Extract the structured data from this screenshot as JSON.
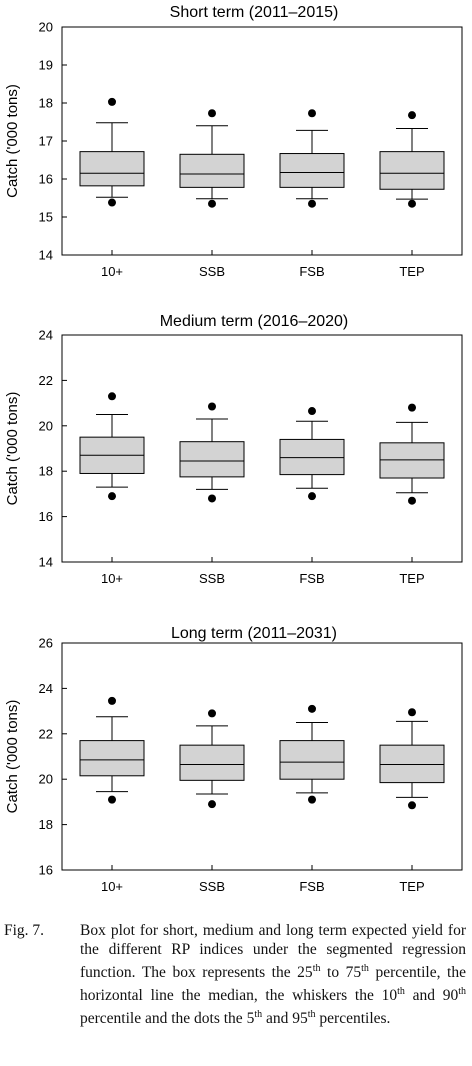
{
  "chart_data": [
    {
      "type": "box",
      "title": "Short term (2011–2015)",
      "ylabel": "Catch ('000 tons)",
      "ylim": [
        14,
        20
      ],
      "yticks": [
        14,
        15,
        16,
        17,
        18,
        19,
        20
      ],
      "categories": [
        "10+",
        "SSB",
        "FSB",
        "TEP"
      ],
      "boxes": [
        {
          "category": "10+",
          "p5": 15.38,
          "p10": 15.52,
          "q1": 15.82,
          "median": 16.15,
          "q3": 16.72,
          "p90": 17.48,
          "p95": 18.03
        },
        {
          "category": "SSB",
          "p5": 15.35,
          "p10": 15.48,
          "q1": 15.78,
          "median": 16.13,
          "q3": 16.65,
          "p90": 17.4,
          "p95": 17.73
        },
        {
          "category": "FSB",
          "p5": 15.35,
          "p10": 15.48,
          "q1": 15.78,
          "median": 16.17,
          "q3": 16.67,
          "p90": 17.28,
          "p95": 17.73
        },
        {
          "category": "TEP",
          "p5": 15.35,
          "p10": 15.47,
          "q1": 15.73,
          "median": 16.15,
          "q3": 16.72,
          "p90": 17.33,
          "p95": 17.68
        }
      ]
    },
    {
      "type": "box",
      "title": "Medium term (2016–2020)",
      "ylabel": "Catch ('000 tons)",
      "ylim": [
        14,
        24
      ],
      "yticks": [
        14,
        16,
        18,
        20,
        22,
        24
      ],
      "categories": [
        "10+",
        "SSB",
        "FSB",
        "TEP"
      ],
      "boxes": [
        {
          "category": "10+",
          "p5": 16.9,
          "p10": 17.3,
          "q1": 17.9,
          "median": 18.7,
          "q3": 19.5,
          "p90": 20.5,
          "p95": 21.3
        },
        {
          "category": "SSB",
          "p5": 16.8,
          "p10": 17.2,
          "q1": 17.75,
          "median": 18.45,
          "q3": 19.3,
          "p90": 20.3,
          "p95": 20.85
        },
        {
          "category": "FSB",
          "p5": 16.9,
          "p10": 17.25,
          "q1": 17.85,
          "median": 18.6,
          "q3": 19.4,
          "p90": 20.2,
          "p95": 20.65
        },
        {
          "category": "TEP",
          "p5": 16.7,
          "p10": 17.05,
          "q1": 17.7,
          "median": 18.5,
          "q3": 19.25,
          "p90": 20.15,
          "p95": 20.8
        }
      ]
    },
    {
      "type": "box",
      "title": "Long term (2011–2031)",
      "ylabel": "Catch ('000 tons)",
      "ylim": [
        16,
        26
      ],
      "yticks": [
        16,
        18,
        20,
        22,
        24,
        26
      ],
      "categories": [
        "10+",
        "SSB",
        "FSB",
        "TEP"
      ],
      "boxes": [
        {
          "category": "10+",
          "p5": 19.1,
          "p10": 19.45,
          "q1": 20.15,
          "median": 20.85,
          "q3": 21.7,
          "p90": 22.75,
          "p95": 23.45
        },
        {
          "category": "SSB",
          "p5": 18.9,
          "p10": 19.35,
          "q1": 19.95,
          "median": 20.65,
          "q3": 21.5,
          "p90": 22.35,
          "p95": 22.9
        },
        {
          "category": "FSB",
          "p5": 19.1,
          "p10": 19.4,
          "q1": 20.0,
          "median": 20.75,
          "q3": 21.7,
          "p90": 22.5,
          "p95": 23.1
        },
        {
          "category": "TEP",
          "p5": 18.85,
          "p10": 19.2,
          "q1": 19.85,
          "median": 20.65,
          "q3": 21.5,
          "p90": 22.55,
          "p95": 22.95
        }
      ]
    }
  ],
  "caption": {
    "label": "Fig. 7.",
    "text": "Box plot for short, medium and long term expected yield for the different RP indices under the segmented regression function. The box represents the 25th to 75th percentile, the horizontal line the median, the whiskers the 10th and 90th percentile and the dots the 5th and 95th percentiles."
  }
}
